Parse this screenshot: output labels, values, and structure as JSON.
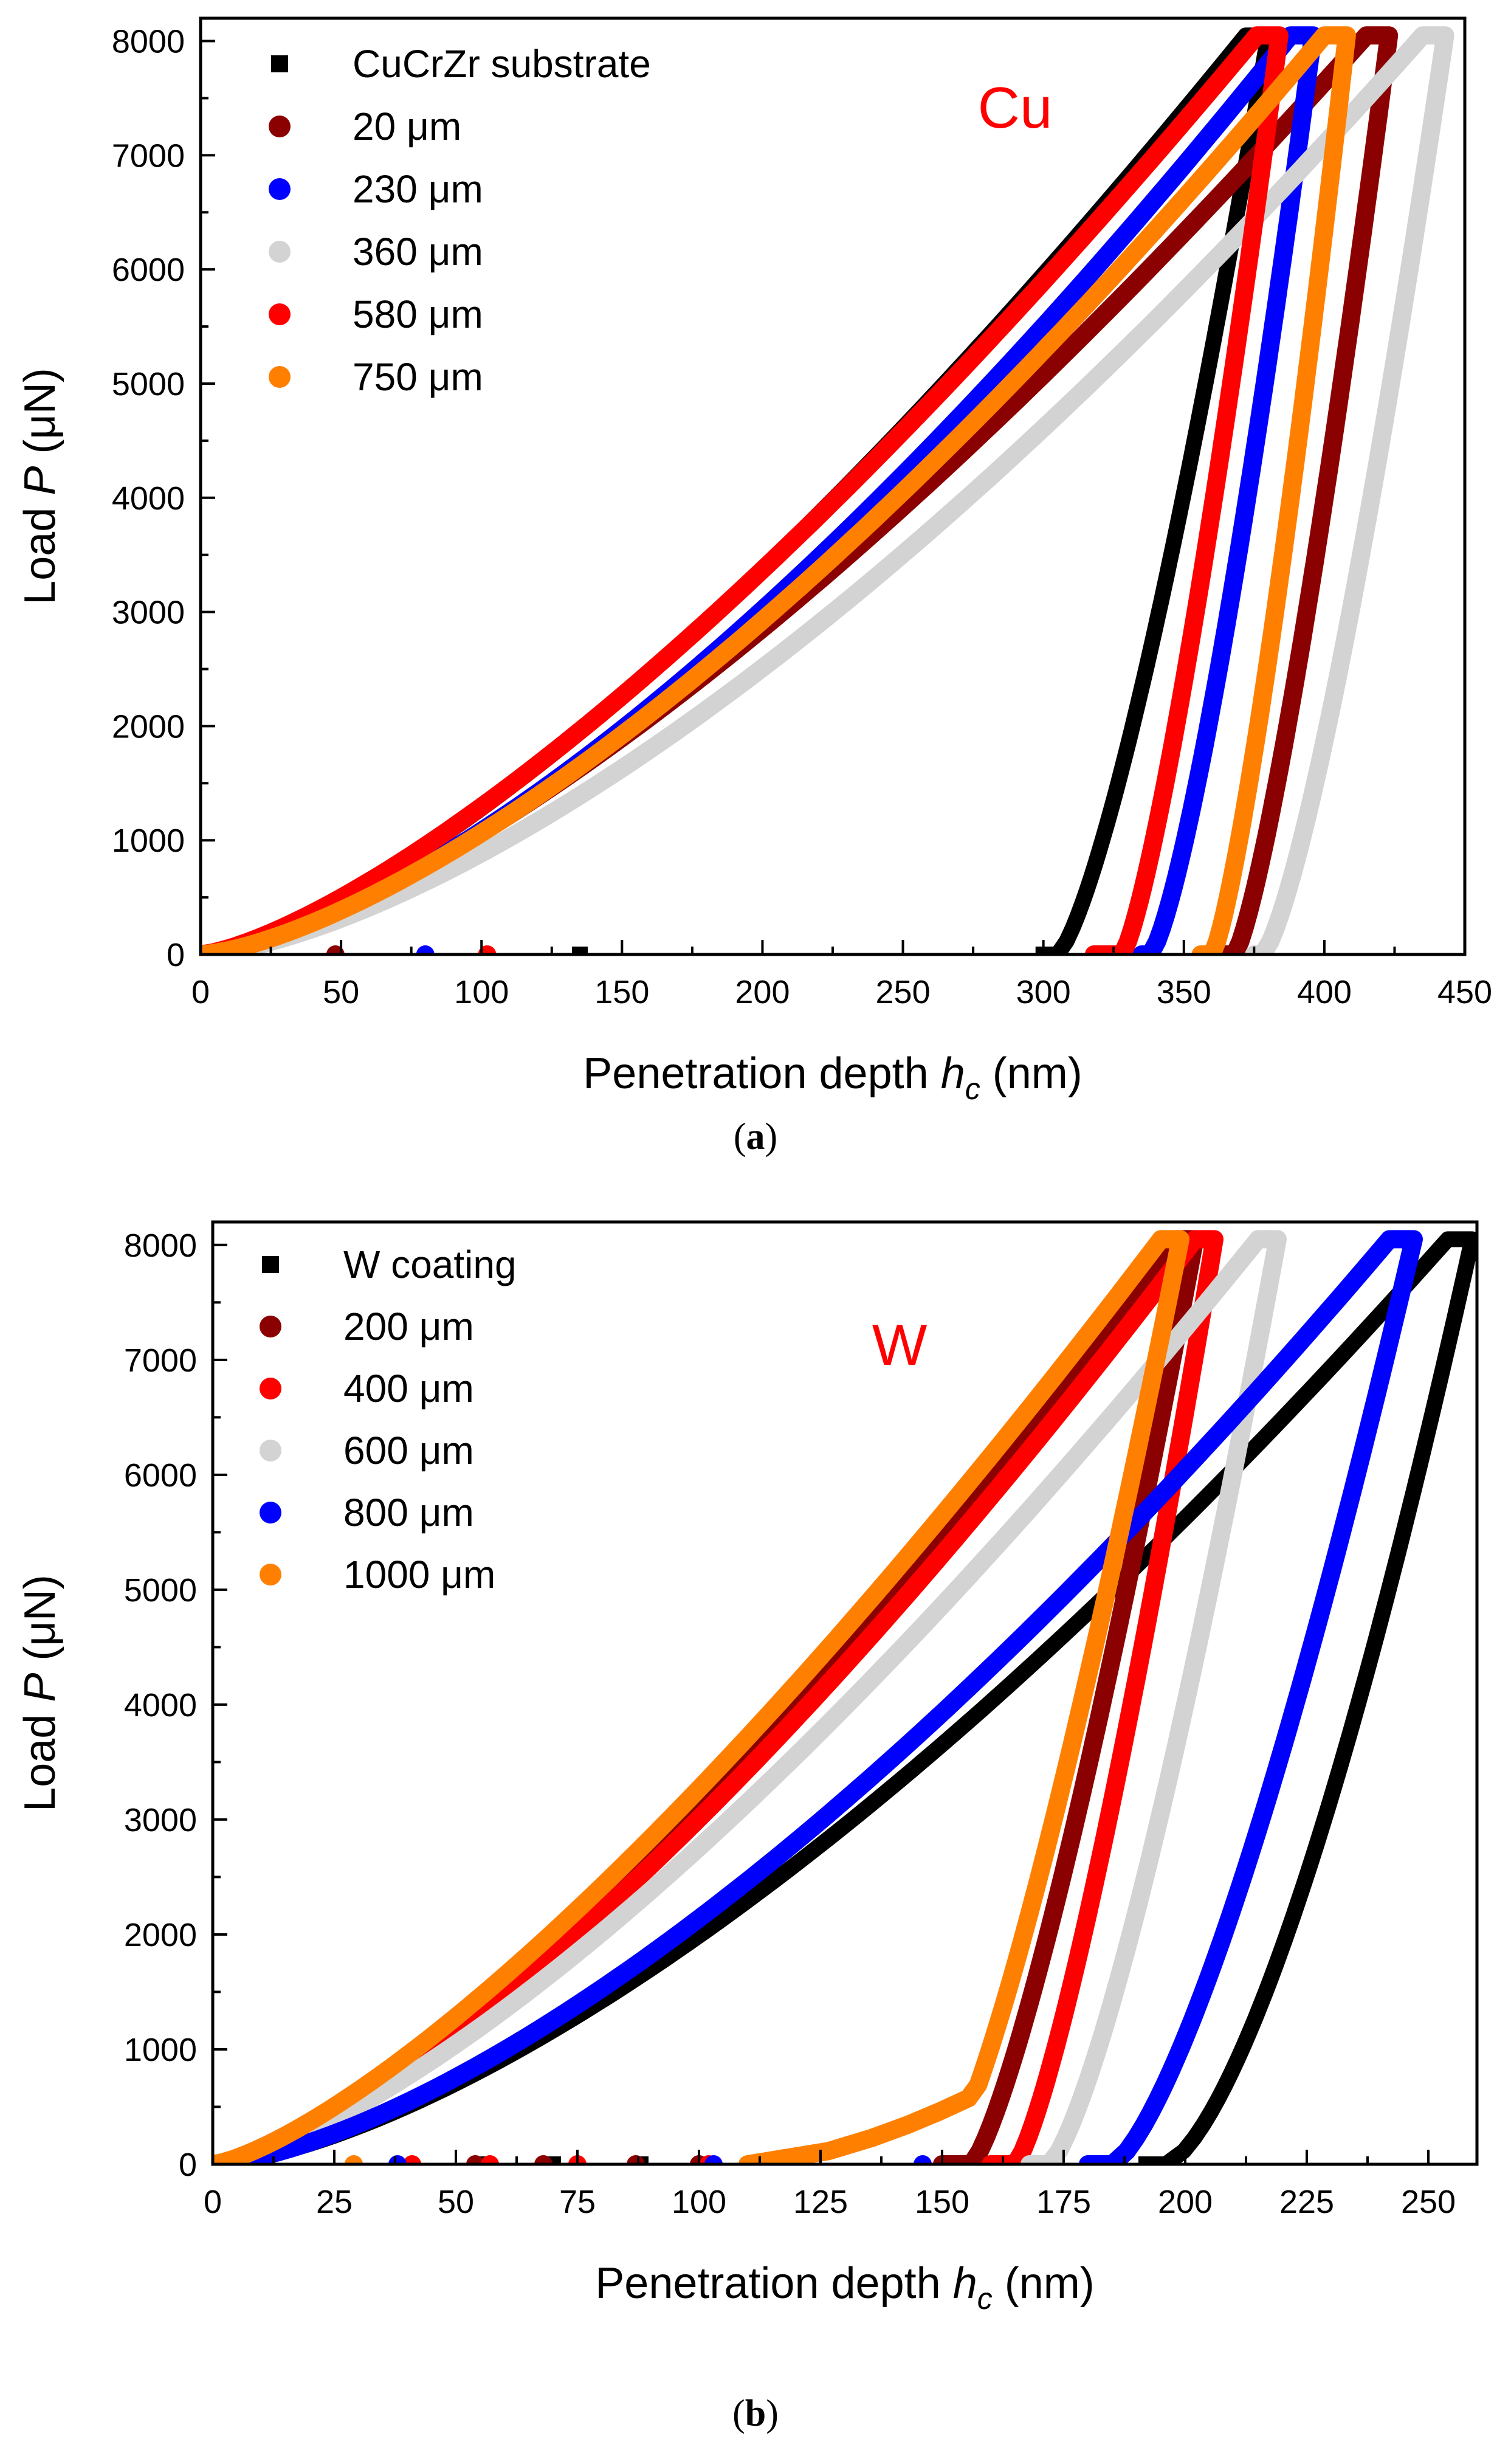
{
  "chart_data": [
    {
      "type": "scatter",
      "panel": "a",
      "caption": "(a)",
      "annotation": {
        "text": "Cu",
        "color": "#ff0000"
      },
      "xlabel": {
        "main": "Penetration depth ",
        "sym": "h",
        "sub": "c",
        "unit": " (nm)"
      },
      "ylabel": {
        "main": "Load ",
        "sym": "P",
        "unit": " (μN)"
      },
      "xlim": [
        0,
        450
      ],
      "ylim": [
        0,
        8200
      ],
      "xticks": [
        "0",
        "50",
        "100",
        "150",
        "200",
        "250",
        "300",
        "350",
        "400",
        "450"
      ],
      "yticks": [
        "0",
        "1000",
        "2000",
        "3000",
        "4000",
        "5000",
        "6000",
        "7000",
        "8000"
      ],
      "legend_position": "top-left",
      "series": [
        {
          "name": "CuCrZr substrate",
          "color": "#000000",
          "marker": "square",
          "hmax": 372,
          "pmax": 8050,
          "n": 1.4,
          "hf": 300,
          "hr": 305,
          "m": 1.35,
          "hold": 8,
          "zeros": [
            135
          ]
        },
        {
          "name": "20 μm",
          "color": "#8b0000",
          "marker": "circle",
          "hmax": 415,
          "pmax": 8050,
          "n": 1.42,
          "hf": 362,
          "hr": 368,
          "m": 1.3,
          "hold": 8,
          "zeros": [
            48
          ]
        },
        {
          "name": "230 μm",
          "color": "#0000ff",
          "marker": "circle",
          "hmax": 388,
          "pmax": 8050,
          "n": 1.48,
          "hf": 335,
          "hr": 338,
          "m": 1.35,
          "hold": 8,
          "zeros": [
            80
          ]
        },
        {
          "name": "360 μm",
          "color": "#d3d3d3",
          "marker": "circle",
          "hmax": 435,
          "pmax": 8050,
          "n": 1.5,
          "hf": 375,
          "hr": 378,
          "m": 1.35,
          "hold": 8,
          "zeros": []
        },
        {
          "name": "580 μm",
          "color": "#ff0000",
          "marker": "circle",
          "hmax": 376,
          "pmax": 8050,
          "n": 1.38,
          "hf": 318,
          "hr": 328,
          "m": 1.3,
          "hold": 8,
          "zeros": [
            102
          ]
        },
        {
          "name": "750 μm",
          "color": "#ff8000",
          "marker": "circle",
          "hmax": 400,
          "pmax": 8050,
          "n": 1.46,
          "hf": 356,
          "hr": 360,
          "m": 1.3,
          "hold": 8,
          "zeros": []
        }
      ]
    },
    {
      "type": "scatter",
      "panel": "b",
      "caption": "(b)",
      "annotation": {
        "text": "W",
        "color": "#ff0000"
      },
      "xlabel": {
        "main": "Penetration depth ",
        "sym": "h",
        "sub": "c",
        "unit": " (nm)"
      },
      "ylabel": {
        "main": "Load ",
        "sym": "P",
        "unit": " (μN)"
      },
      "xlim": [
        0,
        260
      ],
      "ylim": [
        0,
        8200
      ],
      "xticks": [
        "0",
        "25",
        "50",
        "75",
        "100",
        "125",
        "150",
        "175",
        "200",
        "225",
        "250"
      ],
      "yticks": [
        "0",
        "1000",
        "2000",
        "3000",
        "4000",
        "5000",
        "6000",
        "7000",
        "8000"
      ],
      "legend_position": "top-left",
      "series": [
        {
          "name": "W coating",
          "color": "#000000",
          "marker": "square",
          "hmax": 254,
          "pmax": 8050,
          "n": 1.5,
          "hf": 192,
          "hr": 196,
          "m": 1.5,
          "hold": 5,
          "zeros": [
            55,
            70,
            88
          ]
        },
        {
          "name": "200 μm",
          "color": "#8b0000",
          "marker": "circle",
          "hmax": 198,
          "pmax": 8050,
          "n": 1.4,
          "hf": 150,
          "hr": 156,
          "m": 1.3,
          "hold": 4,
          "zeros": [
            54,
            68,
            87,
            100
          ]
        },
        {
          "name": "400 μm",
          "color": "#ff0000",
          "marker": "circle",
          "hmax": 202,
          "pmax": 8050,
          "n": 1.4,
          "hf": 160,
          "hr": 165,
          "m": 1.3,
          "hold": 4,
          "zeros": [
            41,
            57,
            75,
            102
          ]
        },
        {
          "name": "600 μm",
          "color": "#d3d3d3",
          "marker": "circle",
          "hmax": 215,
          "pmax": 8050,
          "n": 1.4,
          "hf": 168,
          "hr": 172,
          "m": 1.35,
          "hold": 4,
          "zeros": []
        },
        {
          "name": "800 μm",
          "color": "#0000ff",
          "marker": "circle",
          "hmax": 242,
          "pmax": 8050,
          "n": 1.5,
          "hf": 180,
          "hr": 185,
          "m": 1.4,
          "hold": 5,
          "zeros": [
            38,
            103,
            146
          ]
        },
        {
          "name": "1000 μm",
          "color": "#ff8000",
          "marker": "circle",
          "hmax": 195,
          "pmax": 8050,
          "n": 1.35,
          "hf": 110,
          "hr": 150,
          "m": 1.3,
          "hold": 4,
          "foot": [
            600,
            1.6
          ],
          "zeros": [
            29
          ]
        }
      ]
    }
  ]
}
